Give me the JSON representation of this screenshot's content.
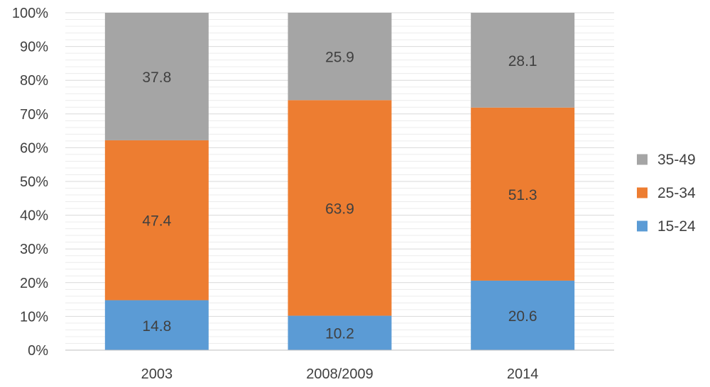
{
  "chart_data": {
    "type": "bar",
    "stacked": true,
    "percent": true,
    "categories": [
      "2003",
      "2008/2009",
      "2014"
    ],
    "series": [
      {
        "name": "15-24",
        "values": [
          14.8,
          10.2,
          20.6
        ],
        "color": "#5B9BD5"
      },
      {
        "name": "25-34",
        "values": [
          47.4,
          63.9,
          51.3
        ],
        "color": "#ED7D31"
      },
      {
        "name": "35-49",
        "values": [
          37.8,
          25.9,
          28.1
        ],
        "color": "#A5A5A5"
      }
    ],
    "y_ticks": [
      "0%",
      "10%",
      "20%",
      "30%",
      "40%",
      "50%",
      "60%",
      "70%",
      "80%",
      "90%",
      "100%"
    ],
    "ylim": [
      0,
      100
    ],
    "grid": true,
    "legend_position": "right",
    "legend_order": [
      "35-49",
      "25-34",
      "15-24"
    ],
    "title": "",
    "xlabel": "",
    "ylabel": ""
  }
}
